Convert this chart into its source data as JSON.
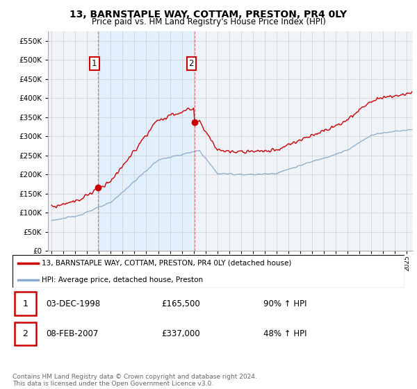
{
  "title": "13, BARNSTAPLE WAY, COTTAM, PRESTON, PR4 0LY",
  "subtitle": "Price paid vs. HM Land Registry's House Price Index (HPI)",
  "property_label": "13, BARNSTAPLE WAY, COTTAM, PRESTON, PR4 0LY (detached house)",
  "hpi_label": "HPI: Average price, detached house, Preston",
  "footnote": "Contains HM Land Registry data © Crown copyright and database right 2024.\nThis data is licensed under the Open Government Licence v3.0.",
  "sale1_date": "03-DEC-1998",
  "sale1_price": "£165,500",
  "sale1_info": "90% ↑ HPI",
  "sale2_date": "08-FEB-2007",
  "sale2_price": "£337,000",
  "sale2_info": "48% ↑ HPI",
  "sale1_year": 1998.92,
  "sale1_value": 165500,
  "sale2_year": 2007.1,
  "sale2_value": 337000,
  "property_color": "#cc0000",
  "hpi_color": "#88aacc",
  "marker_color": "#cc0000",
  "dashed_line_color": "#dd6666",
  "shade_color": "#ddeeff",
  "ylim": [
    0,
    575000
  ],
  "yticks": [
    0,
    50000,
    100000,
    150000,
    200000,
    250000,
    300000,
    350000,
    400000,
    450000,
    500000,
    550000
  ],
  "grid_color": "#cccccc",
  "background_color": "#ffffff",
  "plot_bg_color": "#f0f4f8"
}
